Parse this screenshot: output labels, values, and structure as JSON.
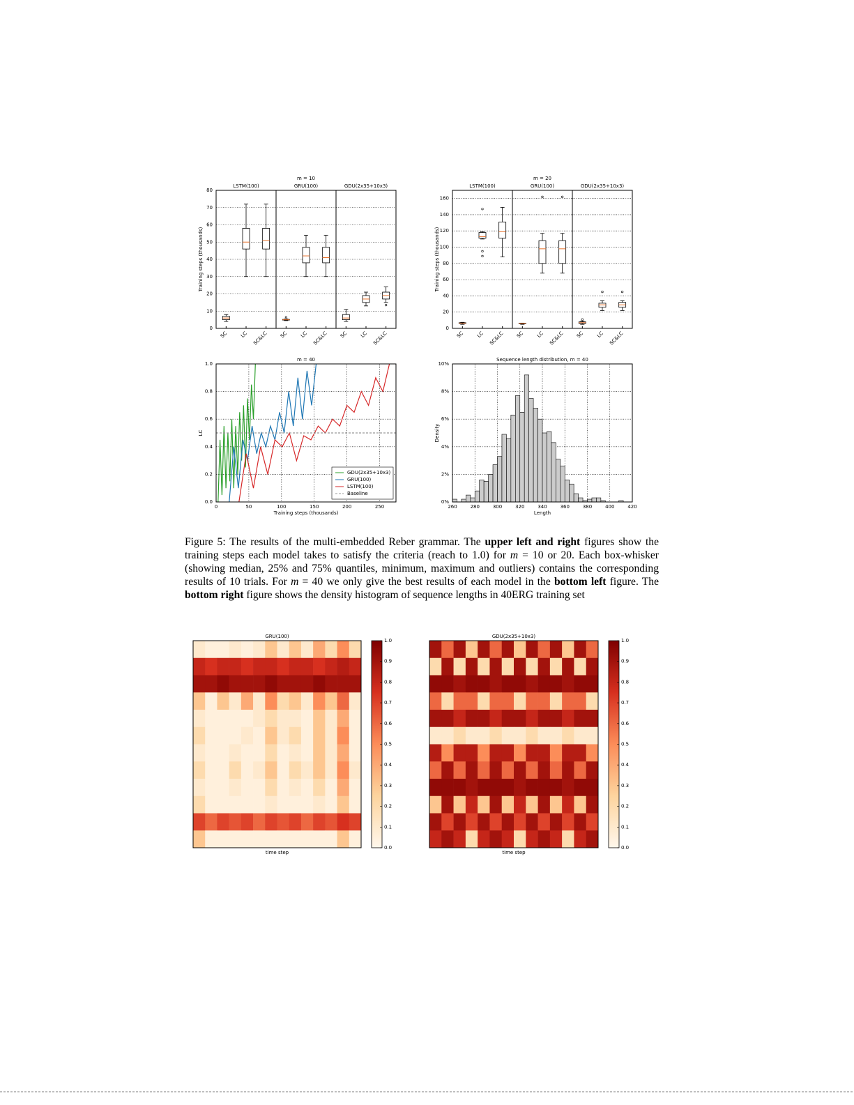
{
  "chart_data": [
    {
      "type": "box",
      "title": "m = 10",
      "ylabel": "Training steps (thousands)",
      "categories": [
        "SC",
        "LC",
        "SC&LC"
      ],
      "ylim": [
        0,
        80
      ],
      "yticks": [
        0,
        10,
        20,
        30,
        40,
        50,
        60,
        70,
        80
      ],
      "grid": true,
      "series": [
        {
          "name": "LSTM(100)",
          "boxes": [
            {
              "min": 4,
              "q1": 5,
              "median": 6,
              "q3": 7,
              "max": 8,
              "outliers": []
            },
            {
              "min": 30,
              "q1": 46,
              "median": 50,
              "q3": 58,
              "max": 72,
              "outliers": []
            },
            {
              "min": 30,
              "q1": 46,
              "median": 51,
              "q3": 58,
              "max": 72,
              "outliers": []
            }
          ]
        },
        {
          "name": "GRU(100)",
          "boxes": [
            {
              "min": 4.5,
              "q1": 4.8,
              "median": 5,
              "q3": 5.2,
              "max": 5.5,
              "outliers": [
                6.5
              ]
            },
            {
              "min": 30,
              "q1": 38,
              "median": 42,
              "q3": 47,
              "max": 54,
              "outliers": []
            },
            {
              "min": 30,
              "q1": 38,
              "median": 41,
              "q3": 47,
              "max": 54,
              "outliers": []
            }
          ]
        },
        {
          "name": "GDU(2x35+10x3)",
          "boxes": [
            {
              "min": 4,
              "q1": 5,
              "median": 6,
              "q3": 8,
              "max": 11,
              "outliers": []
            },
            {
              "min": 13,
              "q1": 15,
              "median": 17,
              "q3": 19,
              "max": 21,
              "outliers": []
            },
            {
              "min": 15,
              "q1": 17,
              "median": 19,
              "q3": 21,
              "max": 24,
              "outliers": [
                13.5
              ]
            }
          ]
        }
      ]
    },
    {
      "type": "box",
      "title": "m = 20",
      "ylabel": "Training steps (thousands)",
      "categories": [
        "SC",
        "LC",
        "SC&LC"
      ],
      "ylim": [
        0,
        170
      ],
      "yticks": [
        0,
        20,
        40,
        60,
        80,
        100,
        120,
        140,
        160
      ],
      "grid": true,
      "series": [
        {
          "name": "LSTM(100)",
          "boxes": [
            {
              "min": 5,
              "q1": 6,
              "median": 6.5,
              "q3": 7,
              "max": 7.5,
              "outliers": []
            },
            {
              "min": 110,
              "q1": 111,
              "median": 113,
              "q3": 118,
              "max": 119,
              "outliers": [
                147,
                95,
                89
              ]
            },
            {
              "min": 88,
              "q1": 111,
              "median": 119,
              "q3": 131,
              "max": 149,
              "outliers": []
            }
          ]
        },
        {
          "name": "GRU(100)",
          "boxes": [
            {
              "min": 5,
              "q1": 5.5,
              "median": 6,
              "q3": 6.2,
              "max": 6.5,
              "outliers": []
            },
            {
              "min": 68,
              "q1": 80,
              "median": 98,
              "q3": 108,
              "max": 117,
              "outliers": [
                162
              ]
            },
            {
              "min": 68,
              "q1": 80,
              "median": 98,
              "q3": 108,
              "max": 117,
              "outliers": [
                162
              ]
            }
          ]
        },
        {
          "name": "GDU(2x35+10x3)",
          "boxes": [
            {
              "min": 5,
              "q1": 6,
              "median": 7,
              "q3": 8,
              "max": 9,
              "outliers": [
                11
              ]
            },
            {
              "min": 22,
              "q1": 26,
              "median": 29,
              "q3": 31,
              "max": 34,
              "outliers": [
                45
              ]
            },
            {
              "min": 22,
              "q1": 26,
              "median": 29,
              "q3": 32,
              "max": 34,
              "outliers": [
                45
              ]
            }
          ]
        }
      ]
    },
    {
      "type": "line",
      "title": "m = 40",
      "xlabel": "Training steps (thousands)",
      "ylabel": "LC",
      "xlim": [
        0,
        275
      ],
      "xticks": [
        0,
        50,
        100,
        150,
        200,
        250
      ],
      "ylim": [
        0,
        1
      ],
      "yticks": [
        {
          "value": 0,
          "label": "0.0"
        },
        {
          "value": 0.2,
          "label": "0.2"
        },
        {
          "value": 0.4,
          "label": "0.4"
        },
        {
          "value": 0.6,
          "label": "0.6"
        },
        {
          "value": 0.8,
          "label": "0.8"
        },
        {
          "value": 1,
          "label": "1.0"
        }
      ],
      "grid": true,
      "legend": "lower right",
      "series": [
        {
          "name": "GDU(2x35+10x3)",
          "color": "#2ca02c",
          "x": [
            3,
            6,
            9,
            12,
            15,
            18,
            21,
            24,
            27,
            30,
            33,
            36,
            39,
            42,
            45,
            48,
            51,
            54,
            57,
            60
          ],
          "values": [
            0.0,
            0.45,
            0.05,
            0.55,
            0.1,
            0.5,
            0.15,
            0.6,
            0.1,
            0.55,
            0.2,
            0.65,
            0.3,
            0.7,
            0.25,
            0.75,
            0.45,
            0.85,
            0.6,
            1.0
          ]
        },
        {
          "name": "GRU(100)",
          "color": "#1f77b4",
          "x": [
            20,
            27,
            34,
            41,
            48,
            55,
            62,
            69,
            76,
            83,
            90,
            97,
            104,
            111,
            118,
            125,
            132,
            139,
            146,
            153
          ],
          "values": [
            0.0,
            0.4,
            0.1,
            0.45,
            0.3,
            0.55,
            0.35,
            0.5,
            0.4,
            0.55,
            0.45,
            0.65,
            0.5,
            0.8,
            0.55,
            0.9,
            0.6,
            0.95,
            0.7,
            1.0
          ]
        },
        {
          "name": "LSTM(100)",
          "color": "#d62728",
          "x": [
            35,
            46,
            57,
            68,
            79,
            90,
            101,
            112,
            123,
            134,
            145,
            156,
            167,
            178,
            189,
            200,
            211,
            222,
            233,
            244,
            255,
            265
          ],
          "values": [
            0.0,
            0.35,
            0.1,
            0.4,
            0.2,
            0.45,
            0.4,
            0.5,
            0.3,
            0.48,
            0.45,
            0.55,
            0.5,
            0.6,
            0.55,
            0.7,
            0.65,
            0.8,
            0.7,
            0.9,
            0.8,
            1.0
          ]
        },
        {
          "name": "Baseline",
          "color": "#999999",
          "dash": true,
          "x": [
            0,
            275
          ],
          "values": [
            0.5,
            0.5
          ]
        }
      ]
    },
    {
      "type": "histogram",
      "title": "Sequence length distribution, m = 40",
      "xlabel": "Length",
      "ylabel": "Density",
      "color": "#cccccc",
      "bins": [
        260,
        264,
        268,
        272,
        276,
        280,
        284,
        288,
        292,
        296,
        300,
        304,
        308,
        312,
        316,
        320,
        324,
        328,
        332,
        336,
        340,
        344,
        348,
        352,
        356,
        360,
        364,
        368,
        372,
        376,
        380,
        384,
        388,
        392,
        396,
        400,
        404,
        408,
        412,
        416,
        420
      ],
      "values": [
        0.2,
        0,
        0.2,
        0.5,
        0.3,
        0.8,
        1.6,
        1.5,
        2.0,
        2.7,
        3.3,
        4.9,
        4.6,
        6.3,
        7.7,
        6.5,
        9.2,
        7.5,
        6.8,
        6.0,
        5.0,
        5.1,
        4.3,
        3.1,
        2.6,
        1.6,
        1.3,
        0.6,
        0.3,
        0.1,
        0.2,
        0.3,
        0.3,
        0.1,
        0,
        0,
        0,
        0.1,
        0,
        0
      ],
      "xlim": [
        260,
        420
      ],
      "xticks": [
        260,
        280,
        300,
        320,
        340,
        360,
        380,
        400,
        420
      ],
      "ylim": [
        0,
        10
      ],
      "yticks": [
        {
          "value": 0,
          "label": "0%"
        },
        {
          "value": 2,
          "label": "2%"
        },
        {
          "value": 4,
          "label": "4%"
        },
        {
          "value": 6,
          "label": "6%"
        },
        {
          "value": 8,
          "label": "8%"
        },
        {
          "value": 10,
          "label": "10%"
        }
      ],
      "grid": true
    },
    {
      "type": "heatmap",
      "title": "GRU(100)",
      "xlabel": "time step",
      "colormap": "OrRd",
      "clim": [
        0,
        1
      ],
      "cticks": [
        {
          "value": 0,
          "label": "0.0"
        },
        {
          "value": 0.1,
          "label": "0.1"
        },
        {
          "value": 0.2,
          "label": "0.2"
        },
        {
          "value": 0.3,
          "label": "0.3"
        },
        {
          "value": 0.4,
          "label": "0.4"
        },
        {
          "value": 0.5,
          "label": "0.5"
        },
        {
          "value": 0.6,
          "label": "0.6"
        },
        {
          "value": 0.7,
          "label": "0.7"
        },
        {
          "value": 0.8,
          "label": "0.8"
        },
        {
          "value": 0.9,
          "label": "0.9"
        },
        {
          "value": 1,
          "label": "1.0"
        }
      ],
      "matrix": [
        [
          0.1,
          0.05,
          0.05,
          0.1,
          0.05,
          0.1,
          0.3,
          0.1,
          0.3,
          0.1,
          0.4,
          0.2,
          0.5,
          0.2
        ],
        [
          0.8,
          0.75,
          0.8,
          0.8,
          0.75,
          0.8,
          0.8,
          0.75,
          0.8,
          0.8,
          0.75,
          0.8,
          0.85,
          0.8
        ],
        [
          0.9,
          0.9,
          0.95,
          0.9,
          0.9,
          0.9,
          0.95,
          0.9,
          0.9,
          0.9,
          0.95,
          0.9,
          0.9,
          0.9
        ],
        [
          0.3,
          0.05,
          0.3,
          0.1,
          0.4,
          0.1,
          0.5,
          0.2,
          0.3,
          0.1,
          0.5,
          0.3,
          0.6,
          0.1
        ],
        [
          0.1,
          0.05,
          0.05,
          0.05,
          0.05,
          0.1,
          0.2,
          0.1,
          0.1,
          0.05,
          0.3,
          0.1,
          0.4,
          0.05
        ],
        [
          0.2,
          0.05,
          0.05,
          0.05,
          0.1,
          0.05,
          0.3,
          0.1,
          0.2,
          0.05,
          0.3,
          0.1,
          0.5,
          0.05
        ],
        [
          0.1,
          0.05,
          0.05,
          0.1,
          0.05,
          0.05,
          0.2,
          0.05,
          0.1,
          0.05,
          0.3,
          0.1,
          0.4,
          0.05
        ],
        [
          0.2,
          0.05,
          0.05,
          0.2,
          0.05,
          0.1,
          0.3,
          0.05,
          0.2,
          0.1,
          0.3,
          0.1,
          0.5,
          0.1
        ],
        [
          0.1,
          0.05,
          0.05,
          0.1,
          0.05,
          0.05,
          0.2,
          0.05,
          0.1,
          0.05,
          0.2,
          0.05,
          0.4,
          0.05
        ],
        [
          0.2,
          0.05,
          0.05,
          0.05,
          0.05,
          0.05,
          0.1,
          0.05,
          0.05,
          0.05,
          0.1,
          0.05,
          0.3,
          0.05
        ],
        [
          0.7,
          0.6,
          0.7,
          0.65,
          0.7,
          0.6,
          0.7,
          0.65,
          0.7,
          0.6,
          0.7,
          0.65,
          0.75,
          0.7
        ],
        [
          0.3,
          0.05,
          0.05,
          0.05,
          0.05,
          0.05,
          0.05,
          0.05,
          0.05,
          0.05,
          0.05,
          0.05,
          0.3,
          0.05
        ]
      ]
    },
    {
      "type": "heatmap",
      "title": "GDU(2x35+10x3)",
      "xlabel": "time step",
      "colormap": "OrRd",
      "clim": [
        0,
        1
      ],
      "cticks": [
        {
          "value": 0,
          "label": "0.0"
        },
        {
          "value": 0.1,
          "label": "0.1"
        },
        {
          "value": 0.2,
          "label": "0.2"
        },
        {
          "value": 0.3,
          "label": "0.3"
        },
        {
          "value": 0.4,
          "label": "0.4"
        },
        {
          "value": 0.5,
          "label": "0.5"
        },
        {
          "value": 0.6,
          "label": "0.6"
        },
        {
          "value": 0.7,
          "label": "0.7"
        },
        {
          "value": 0.8,
          "label": "0.8"
        },
        {
          "value": 0.9,
          "label": "0.9"
        },
        {
          "value": 1,
          "label": "1.0"
        }
      ],
      "matrix": [
        [
          0.9,
          0.6,
          0.9,
          0.3,
          0.9,
          0.6,
          0.9,
          0.3,
          0.9,
          0.6,
          0.9,
          0.3,
          0.9,
          0.6
        ],
        [
          0.2,
          0.9,
          0.2,
          0.9,
          0.2,
          0.9,
          0.2,
          0.9,
          0.2,
          0.9,
          0.2,
          0.9,
          0.2,
          0.9
        ],
        [
          0.95,
          0.95,
          0.9,
          0.95,
          0.95,
          0.9,
          0.95,
          0.95,
          0.9,
          0.95,
          0.95,
          0.9,
          0.95,
          0.95
        ],
        [
          0.6,
          0.2,
          0.6,
          0.6,
          0.2,
          0.6,
          0.6,
          0.2,
          0.6,
          0.6,
          0.2,
          0.6,
          0.6,
          0.2
        ],
        [
          0.9,
          0.9,
          0.8,
          0.9,
          0.9,
          0.8,
          0.9,
          0.9,
          0.8,
          0.9,
          0.9,
          0.8,
          0.9,
          0.9
        ],
        [
          0.1,
          0.1,
          0.2,
          0.1,
          0.1,
          0.2,
          0.1,
          0.1,
          0.2,
          0.1,
          0.1,
          0.2,
          0.1,
          0.1
        ],
        [
          0.85,
          0.5,
          0.85,
          0.85,
          0.5,
          0.85,
          0.85,
          0.5,
          0.85,
          0.85,
          0.5,
          0.85,
          0.85,
          0.5
        ],
        [
          0.6,
          0.9,
          0.6,
          0.9,
          0.6,
          0.9,
          0.6,
          0.9,
          0.6,
          0.9,
          0.6,
          0.9,
          0.6,
          0.9
        ],
        [
          0.95,
          0.95,
          0.95,
          0.9,
          0.95,
          0.95,
          0.95,
          0.9,
          0.95,
          0.95,
          0.95,
          0.9,
          0.95,
          0.95
        ],
        [
          0.3,
          0.9,
          0.3,
          0.8,
          0.3,
          0.9,
          0.3,
          0.8,
          0.3,
          0.9,
          0.3,
          0.8,
          0.3,
          0.9
        ],
        [
          0.9,
          0.7,
          0.9,
          0.7,
          0.9,
          0.7,
          0.9,
          0.7,
          0.9,
          0.7,
          0.9,
          0.7,
          0.9,
          0.7
        ],
        [
          0.8,
          0.9,
          0.8,
          0.2,
          0.8,
          0.9,
          0.8,
          0.2,
          0.8,
          0.9,
          0.8,
          0.2,
          0.8,
          0.9
        ]
      ]
    }
  ],
  "caption": {
    "parts": [
      {
        "text": "Figure 5:",
        "style": "normal"
      },
      {
        "text": " The results of the multi-embedded Reber grammar. The ",
        "style": "normal"
      },
      {
        "text": "upper left and right",
        "style": "bold"
      },
      {
        "text": " figures show the training steps each model takes to satisfy the criteria (reach to 1.0) for ",
        "style": "normal"
      },
      {
        "text": "m",
        "style": "italic"
      },
      {
        "text": " = 10 or 20. Each box-whisker (showing median, 25% and 75% quantiles, minimum, maximum and outliers) contains the corresponding results of 10 trials. For ",
        "style": "normal"
      },
      {
        "text": "m",
        "style": "italic"
      },
      {
        "text": " = 40 we only give the best results of each model in the ",
        "style": "normal"
      },
      {
        "text": "bottom left",
        "style": "bold"
      },
      {
        "text": " figure. The ",
        "style": "normal"
      },
      {
        "text": "bottom right",
        "style": "bold"
      },
      {
        "text": " figure shows the density histogram of sequence lengths in 40ERG training set",
        "style": "normal"
      }
    ]
  }
}
